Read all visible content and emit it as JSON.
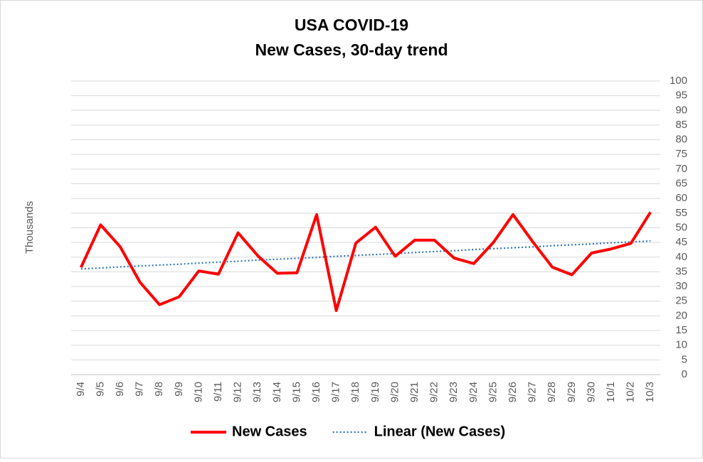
{
  "chart_data": {
    "type": "line",
    "title": "USA COVID-19",
    "subtitle": "New Cases, 30-day trend",
    "y_label": "Thousands",
    "categories": [
      "9/4",
      "9/5",
      "9/6",
      "9/7",
      "9/8",
      "9/9",
      "9/10",
      "9/11",
      "9/12",
      "9/13",
      "9/14",
      "9/15",
      "9/16",
      "9/17",
      "9/18",
      "9/19",
      "9/20",
      "9/21",
      "9/22",
      "9/23",
      "9/24",
      "9/25",
      "9/26",
      "9/27",
      "9/28",
      "9/29",
      "9/30",
      "10/1",
      "10/2",
      "10/3"
    ],
    "series": [
      {
        "name": "New Cases",
        "color": "#ff0000",
        "style": "solid",
        "values": [
          36.5,
          51,
          43.5,
          31.5,
          23.8,
          26.5,
          35.3,
          34.2,
          48.3,
          40.5,
          34.5,
          34.7,
          54.5,
          21.8,
          44.8,
          50.2,
          40.3,
          45.8,
          45.8,
          39.7,
          37.8,
          45,
          54.5,
          45.3,
          36.6,
          34,
          41.4,
          42.8,
          44.7,
          55.3
        ]
      },
      {
        "name": "Linear (New Cases)",
        "color": "#2e75b6",
        "style": "dotted",
        "values": [
          36.0,
          36.3,
          36.7,
          37.0,
          37.3,
          37.6,
          38.0,
          38.3,
          38.6,
          39.0,
          39.3,
          39.6,
          39.9,
          40.3,
          40.6,
          40.9,
          41.2,
          41.6,
          41.9,
          42.2,
          42.6,
          42.9,
          43.2,
          43.5,
          43.9,
          44.2,
          44.5,
          44.9,
          45.2,
          45.5
        ]
      }
    ],
    "ylim": [
      0,
      100
    ],
    "yticks": [
      0,
      5,
      10,
      15,
      20,
      25,
      30,
      35,
      40,
      45,
      50,
      55,
      60,
      65,
      70,
      75,
      80,
      85,
      90,
      95,
      100
    ],
    "y_axis_side": "right",
    "grid": true,
    "legend": "bottom"
  }
}
